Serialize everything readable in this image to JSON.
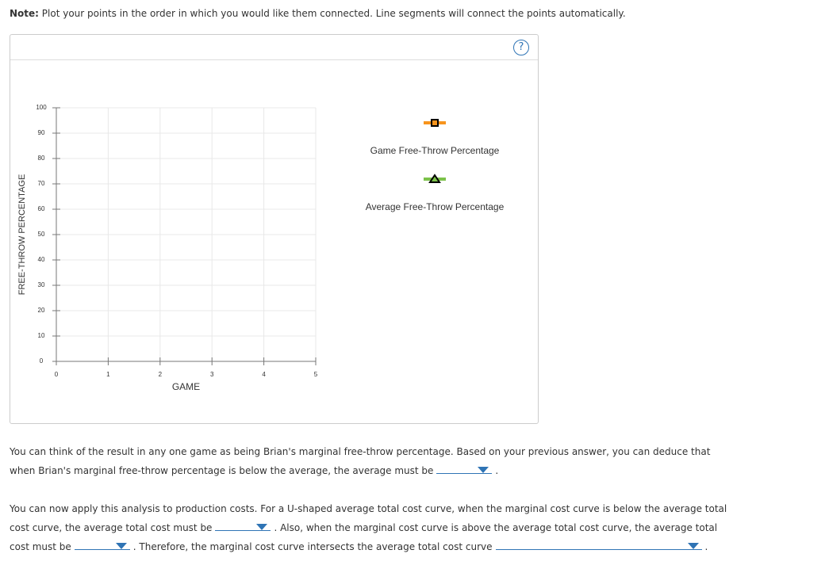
{
  "note": {
    "label": "Note:",
    "text": "Plot your points in the order in which you would like them connected. Line segments will connect the points automatically."
  },
  "help_icon": "?",
  "chart": {
    "type": "line",
    "ylabel": "FREE-THROW PERCENTAGE",
    "xlabel": "GAME",
    "xlim": [
      0,
      5
    ],
    "xticks": [
      0,
      1,
      2,
      3,
      4,
      5
    ],
    "ylim": [
      0,
      100
    ],
    "yticks": [
      0,
      10,
      20,
      30,
      40,
      50,
      60,
      70,
      80,
      90,
      100
    ],
    "grid": true,
    "legend": [
      {
        "name": "Game Free-Throw Percentage",
        "color": "#f7941d",
        "marker": "square"
      },
      {
        "name": "Average Free-Throw Percentage",
        "color": "#7cc24a",
        "marker": "triangle"
      }
    ]
  },
  "paragraphs": [
    [
      "You can think of the result in any one game as being Brian's marginal free-throw percentage. Based on your previous answer, you can deduce that when Brian's marginal free-throw percentage is below the average, the average must be",
      "."
    ],
    [
      "You can now apply this analysis to production costs. For a U-shaped average total cost curve, when the marginal cost curve is below the average total cost curve, the average total cost must be",
      ". Also, when the marginal cost curve is above the average total cost curve, the average total cost must be",
      ". Therefore, the marginal cost curve intersects the average total cost curve",
      "."
    ]
  ]
}
